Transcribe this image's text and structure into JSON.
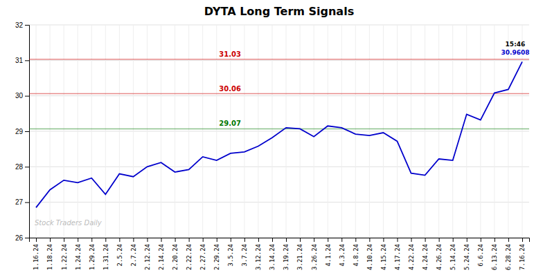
{
  "chart_data": {
    "type": "line",
    "title": "DYTA Long Term Signals",
    "categories": [
      "1.16.24",
      "1.18.24",
      "1.22.24",
      "1.24.24",
      "1.29.24",
      "1.31.24",
      "2.5.24",
      "2.7.24",
      "2.12.24",
      "2.14.24",
      "2.20.24",
      "2.22.24",
      "2.27.24",
      "2.29.24",
      "3.5.24",
      "3.7.24",
      "3.12.24",
      "3.14.24",
      "3.19.24",
      "3.21.24",
      "3.26.24",
      "4.1.24",
      "4.3.24",
      "4.8.24",
      "4.10.24",
      "4.15.24",
      "4.17.24",
      "4.22.24",
      "4.24.24",
      "4.26.24",
      "5.14.24",
      "5.24.24",
      "6.6.24",
      "6.13.24",
      "6.28.24",
      "7.16.24"
    ],
    "values": [
      26.85,
      27.35,
      27.62,
      27.55,
      27.68,
      27.22,
      27.8,
      27.72,
      28.0,
      28.12,
      27.85,
      27.92,
      28.28,
      28.18,
      28.38,
      28.42,
      28.58,
      28.82,
      29.1,
      29.07,
      28.85,
      29.15,
      29.1,
      28.92,
      28.88,
      28.96,
      28.72,
      27.82,
      27.76,
      28.22,
      28.18,
      29.48,
      29.32,
      30.08,
      30.18,
      30.9608
    ],
    "color": "#0000cc",
    "hlines": [
      {
        "value": 31.03,
        "label": "31.03",
        "color": "#cc0000"
      },
      {
        "value": 30.06,
        "label": "30.06",
        "color": "#cc0000"
      },
      {
        "value": 29.07,
        "label": "29.07",
        "color": "#007700"
      }
    ],
    "annotations": [
      {
        "text": "15:46"
      },
      {
        "text": "30.9608"
      }
    ],
    "watermark": "Stock Traders Daily",
    "ylim": [
      26,
      32
    ],
    "yticks": [
      26,
      27,
      28,
      29,
      30,
      31,
      32
    ],
    "grid": true
  }
}
